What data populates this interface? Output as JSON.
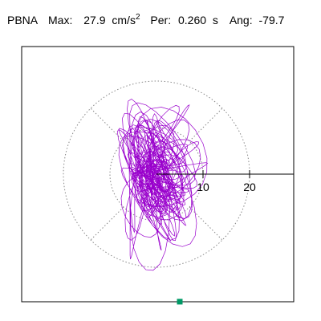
{
  "header": {
    "station": "PBNA",
    "max_label": "Max:",
    "max_value": "27.9",
    "max_unit": "cm/s",
    "max_unit_exp": "2",
    "per_label": "Per:",
    "per_value": "0.260",
    "per_unit": "s",
    "ang_label": "Ang:",
    "ang_value": "-79.7"
  },
  "chart_data": {
    "type": "scatter",
    "title": "",
    "xlabel": "",
    "ylabel": "",
    "radial_ticks": [
      10,
      20
    ],
    "radial_tick_labels": [
      "10",
      "20"
    ],
    "radial_range": [
      0,
      30
    ],
    "grid": "polar-dotted",
    "reference_line_angle_deg": 0,
    "max_amplitude": 27.9,
    "max_angle_deg": -79.7,
    "trace_color": "#9900cc",
    "marker_color": "#009966",
    "marker_point": {
      "x": 5,
      "y": -27.4
    },
    "spread_x": 9,
    "spread_y": 20
  }
}
